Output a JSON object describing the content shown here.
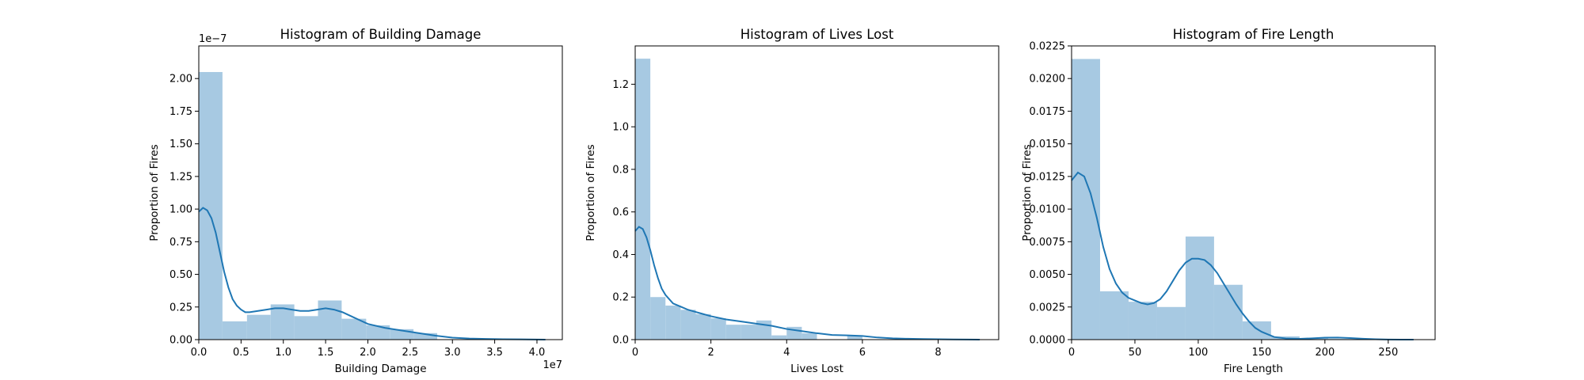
{
  "figure": {
    "background": "#ffffff"
  },
  "colors": {
    "bar": "#a7c9e2",
    "kde": "#1f77b4",
    "axis": "#000000"
  },
  "chart_data": [
    {
      "type": "bar",
      "title": "Histogram of Building Damage",
      "xlabel": "Building Damage",
      "ylabel": "Proportion of Fires",
      "x_offset_label": "1e7",
      "y_offset_label": "1e−7",
      "xlim": [
        0,
        4.3
      ],
      "ylim": [
        0,
        2.25
      ],
      "xticks": [
        0,
        0.5,
        1.0,
        1.5,
        2.0,
        2.5,
        3.0,
        3.5,
        4.0
      ],
      "xticklabels": [
        "0.0",
        "0.5",
        "1.0",
        "1.5",
        "2.0",
        "2.5",
        "3.0",
        "3.5",
        "4.0"
      ],
      "yticks": [
        0,
        0.25,
        0.5,
        0.75,
        1.0,
        1.25,
        1.5,
        1.75,
        2.0
      ],
      "yticklabels": [
        "0.00",
        "0.25",
        "0.50",
        "0.75",
        "1.00",
        "1.25",
        "1.50",
        "1.75",
        "2.00"
      ],
      "bin_edges": [
        0,
        0.28,
        0.57,
        0.85,
        1.13,
        1.41,
        1.69,
        1.98,
        2.26,
        2.54,
        2.82,
        3.1,
        3.39,
        3.67,
        3.95
      ],
      "values": [
        2.05,
        0.14,
        0.19,
        0.27,
        0.18,
        0.3,
        0.16,
        0.11,
        0.08,
        0.05,
        0.0,
        0.0,
        0.0,
        0.005
      ],
      "kde": {
        "x": [
          0,
          0.05,
          0.1,
          0.15,
          0.2,
          0.25,
          0.3,
          0.35,
          0.4,
          0.45,
          0.5,
          0.55,
          0.6,
          0.7,
          0.8,
          0.9,
          1.0,
          1.1,
          1.2,
          1.3,
          1.4,
          1.5,
          1.6,
          1.7,
          1.8,
          1.9,
          2.0,
          2.2,
          2.4,
          2.6,
          2.8,
          3.0,
          3.2,
          3.4,
          3.6,
          3.8,
          4.0,
          4.1
        ],
        "y": [
          0.98,
          1.01,
          0.99,
          0.93,
          0.82,
          0.67,
          0.52,
          0.4,
          0.31,
          0.26,
          0.23,
          0.21,
          0.21,
          0.22,
          0.23,
          0.24,
          0.24,
          0.23,
          0.22,
          0.22,
          0.23,
          0.24,
          0.23,
          0.21,
          0.18,
          0.15,
          0.12,
          0.09,
          0.07,
          0.05,
          0.03,
          0.015,
          0.008,
          0.005,
          0.003,
          0.002,
          0.001,
          0.0
        ]
      }
    },
    {
      "type": "bar",
      "title": "Histogram of Lives Lost",
      "xlabel": "Lives Lost",
      "ylabel": "Proportion of Fires",
      "xlim": [
        0,
        9.6
      ],
      "ylim": [
        0,
        1.38
      ],
      "xticks": [
        0,
        2,
        4,
        6,
        8
      ],
      "xticklabels": [
        "0",
        "2",
        "4",
        "6",
        "8"
      ],
      "yticks": [
        0,
        0.2,
        0.4,
        0.6,
        0.8,
        1.0,
        1.2
      ],
      "yticklabels": [
        "0.0",
        "0.2",
        "0.4",
        "0.6",
        "0.8",
        "1.0",
        "1.2"
      ],
      "bin_edges": [
        0,
        0.4,
        0.8,
        1.2,
        1.6,
        2.0,
        2.4,
        2.8,
        3.2,
        3.6,
        4.0,
        4.4,
        4.8,
        5.2,
        5.6,
        6.0,
        6.4,
        6.8,
        7.2,
        7.6,
        8.0
      ],
      "values": [
        1.32,
        0.2,
        0.16,
        0.14,
        0.12,
        0.1,
        0.07,
        0.07,
        0.09,
        0.02,
        0.06,
        0.03,
        0.0,
        0.0,
        0.02,
        0.0,
        0.0,
        0.0,
        0.0,
        0.005
      ],
      "kde": {
        "x": [
          0,
          0.1,
          0.2,
          0.3,
          0.4,
          0.5,
          0.6,
          0.7,
          0.8,
          1.0,
          1.2,
          1.4,
          1.6,
          1.8,
          2.0,
          2.4,
          2.8,
          3.2,
          3.6,
          4.0,
          4.4,
          4.8,
          5.2,
          5.6,
          6.0,
          6.4,
          6.8,
          7.2,
          7.6,
          8.0,
          8.4,
          8.8,
          9.1
        ],
        "y": [
          0.51,
          0.53,
          0.52,
          0.48,
          0.42,
          0.35,
          0.29,
          0.24,
          0.21,
          0.17,
          0.155,
          0.14,
          0.13,
          0.12,
          0.11,
          0.095,
          0.085,
          0.075,
          0.065,
          0.05,
          0.04,
          0.03,
          0.022,
          0.02,
          0.017,
          0.01,
          0.006,
          0.004,
          0.003,
          0.002,
          0.001,
          0.0005,
          0.0
        ]
      }
    },
    {
      "type": "bar",
      "title": "Histogram of Fire Length",
      "xlabel": "Fire Length",
      "ylabel": "Proportion of Fires",
      "xlim": [
        0,
        287
      ],
      "ylim": [
        0,
        0.0225
      ],
      "xticks": [
        0,
        50,
        100,
        150,
        200,
        250
      ],
      "xticklabels": [
        "0",
        "50",
        "100",
        "150",
        "200",
        "250"
      ],
      "yticks": [
        0,
        0.0025,
        0.005,
        0.0075,
        0.01,
        0.0125,
        0.015,
        0.0175,
        0.02,
        0.0225
      ],
      "yticklabels": [
        "0.0000",
        "0.0025",
        "0.0050",
        "0.0075",
        "0.0100",
        "0.0125",
        "0.0150",
        "0.0175",
        "0.0200",
        "0.0225"
      ],
      "bin_edges": [
        0,
        22.5,
        45,
        67.5,
        90,
        112.5,
        135,
        157.5,
        180,
        202.5,
        225
      ],
      "values": [
        0.0215,
        0.0037,
        0.0029,
        0.0025,
        0.0079,
        0.0042,
        0.0014,
        0.00025,
        0.0001,
        5e-05
      ],
      "kde": {
        "x": [
          0,
          5,
          10,
          15,
          20,
          25,
          30,
          35,
          40,
          45,
          50,
          55,
          60,
          65,
          70,
          75,
          80,
          85,
          90,
          95,
          100,
          105,
          110,
          115,
          120,
          125,
          130,
          135,
          140,
          145,
          150,
          160,
          170,
          180,
          190,
          200,
          210,
          220,
          230,
          240,
          250,
          260,
          270
        ],
        "y": [
          0.0122,
          0.0128,
          0.0125,
          0.0112,
          0.0093,
          0.0071,
          0.0054,
          0.0043,
          0.0036,
          0.0032,
          0.003,
          0.0028,
          0.0027,
          0.0028,
          0.0031,
          0.0037,
          0.0045,
          0.0053,
          0.0059,
          0.0062,
          0.0062,
          0.0061,
          0.0057,
          0.0051,
          0.0043,
          0.0035,
          0.0027,
          0.002,
          0.0014,
          0.0009,
          0.0006,
          0.0002,
          8e-05,
          6e-05,
          0.0001,
          0.00015,
          0.00016,
          0.00012,
          7e-05,
          3e-05,
          1e-05,
          0.0,
          0.0
        ]
      }
    }
  ]
}
